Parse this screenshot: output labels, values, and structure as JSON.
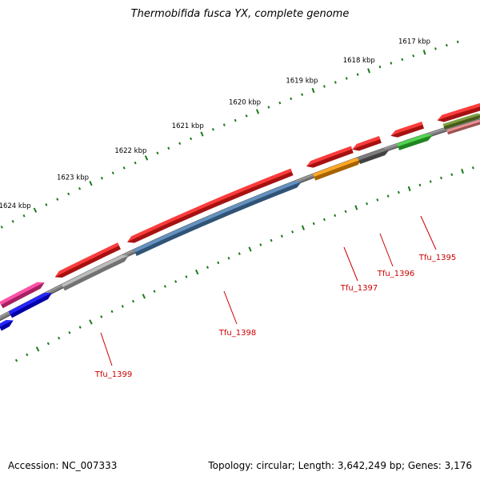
{
  "title": "Thermobifida fusca YX, complete genome",
  "footer": {
    "accession": "Accession: NC_007333",
    "topology": "Topology: circular; Length: 3,642,249 bp; Genes: 3,176"
  },
  "kbp_labels": [
    {
      "label": "1617 kbp"
    },
    {
      "label": "1618 kbp"
    },
    {
      "label": "1619 kbp"
    },
    {
      "label": "1620 kbp"
    },
    {
      "label": "1621 kbp"
    },
    {
      "label": "1622 kbp"
    },
    {
      "label": "1623 kbp"
    },
    {
      "label": "1624 kbp"
    }
  ],
  "gene_labels": [
    {
      "label": "Tfu_1395",
      "color": "#cc0000"
    },
    {
      "label": "Tfu_1396",
      "color": "#cc0000"
    },
    {
      "label": "Tfu_1397",
      "color": "#cc0000"
    },
    {
      "label": "Tfu_1398",
      "color": "#cc0000"
    },
    {
      "label": "Tfu_1399",
      "color": "#cc0000"
    }
  ],
  "colors": {
    "backbone": "#808080",
    "tick": "#1a7a1a",
    "cds": "#ff1a1a",
    "gene_steelblue": "#4a7fb5",
    "gene_gray": "#b0b0b0",
    "gene_orange": "#ff9900",
    "gene_darkgray": "#666666",
    "gene_green": "#33cc33",
    "gene_olive": "#6b8e23",
    "gene_pink": "#f08080",
    "gene_magenta": "#ff3399",
    "gene_blue": "#0000ff",
    "label_line": "#cc0000"
  }
}
